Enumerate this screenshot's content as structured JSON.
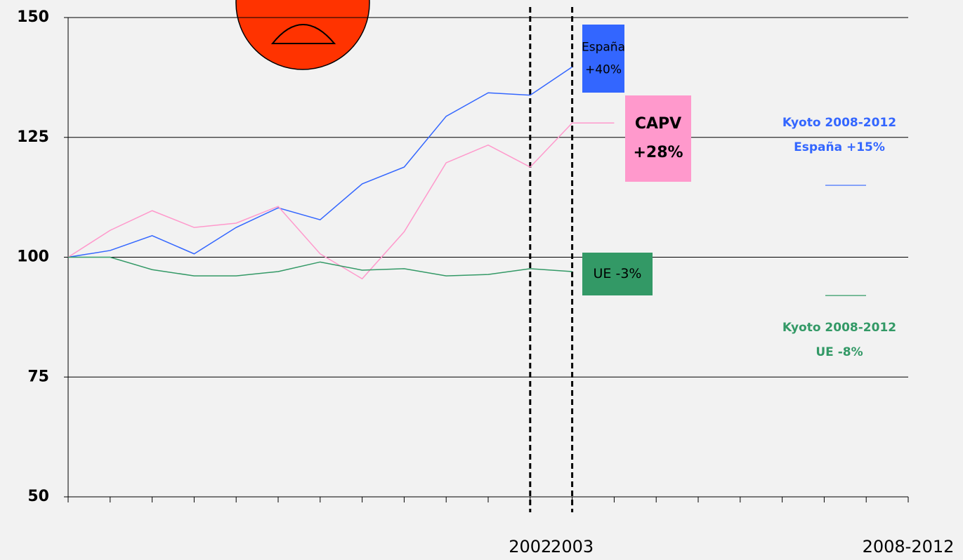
{
  "chart_data": {
    "type": "line",
    "categories": [
      null,
      null,
      null,
      null,
      null,
      null,
      null,
      null,
      null,
      null,
      null,
      "2002",
      "2003",
      null,
      null,
      null,
      null,
      null,
      null,
      null,
      "2008-2012"
    ],
    "ylim": [
      50,
      150
    ],
    "yticks": [
      50,
      75,
      100,
      125,
      150
    ],
    "grid": true,
    "series": [
      {
        "color": "#3366ff",
        "callout": [
          "España",
          "+40%"
        ],
        "callout_color": "#3366ff",
        "values": [
          100,
          101.4,
          104.5,
          100.7,
          106.2,
          110.3,
          107.8,
          115.3,
          118.8,
          129.4,
          134.3,
          133.8,
          139.7,
          null,
          null,
          null,
          null,
          null,
          null,
          null,
          null
        ]
      },
      {
        "color": "#ff99cc",
        "callout": [
          "CAPV",
          "+28%"
        ],
        "callout_color": "#ff99cc",
        "values": [
          100,
          105.6,
          109.7,
          106.2,
          107.1,
          110.6,
          100.7,
          95.5,
          105.3,
          119.7,
          123.4,
          118.8,
          128,
          128,
          null,
          null,
          null,
          null,
          null,
          null,
          null
        ]
      },
      {
        "color": "#339966",
        "callout": [
          "UE -3%"
        ],
        "callout_color": "#339966",
        "values": [
          100,
          100,
          97.4,
          96.1,
          96.1,
          97,
          99,
          97.3,
          97.6,
          96.1,
          96.4,
          97.6,
          97,
          null,
          null,
          null,
          null,
          null,
          null,
          null,
          null
        ]
      }
    ],
    "targets": [
      {
        "label": [
          "Kyoto 2008-2012",
          "España +15%"
        ],
        "value": 115,
        "color": "#3366ff"
      },
      {
        "label": [
          "Kyoto 2008-2012",
          "UE -8%"
        ],
        "value": 92,
        "color": "#339966"
      }
    ]
  }
}
